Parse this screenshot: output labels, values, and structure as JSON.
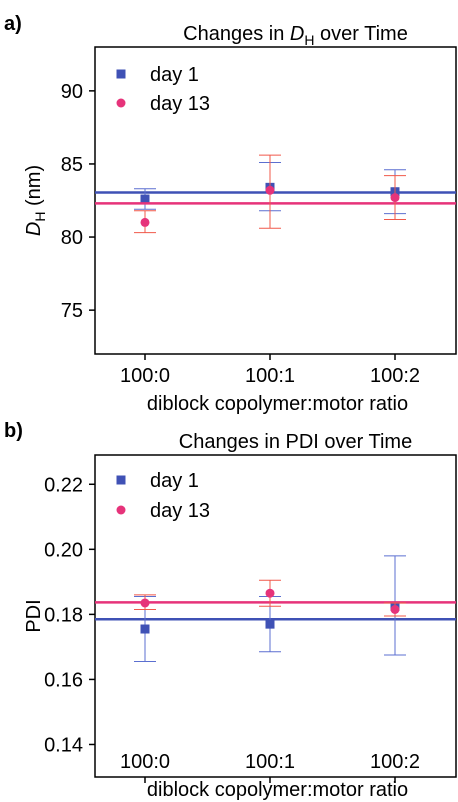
{
  "colors": {
    "day1": "#3f51b5",
    "day13": "#e6337a",
    "day1_err": "#5b6fd0",
    "day13_err": "#f0584a"
  },
  "chart_data": [
    {
      "panel_label": "a)",
      "type": "scatter",
      "title": {
        "pre": "Changes in ",
        "var": "D",
        "sub": "H",
        "post": " over Time"
      },
      "xlabel": "diblock copolymer:motor ratio",
      "ylabel": {
        "var": "D",
        "sub": "H",
        "post": " (nm)"
      },
      "categories": [
        "100:0",
        "100:1",
        "100:2"
      ],
      "ylim": [
        72,
        93
      ],
      "yticks": [
        75,
        80,
        85,
        90
      ],
      "tick_labels": [
        "75",
        "80",
        "85",
        "90"
      ],
      "legend_position": "top-left",
      "series": [
        {
          "name": "day 1",
          "marker": "square",
          "values": [
            82.6,
            83.4,
            83.1
          ],
          "err_low": [
            81.9,
            81.8,
            81.6
          ],
          "err_high": [
            83.3,
            85.1,
            84.6
          ],
          "mean": 83.05
        },
        {
          "name": "day 13",
          "marker": "circle",
          "values": [
            81.0,
            83.2,
            82.7
          ],
          "err_low": [
            80.3,
            80.6,
            81.2
          ],
          "err_high": [
            81.8,
            85.6,
            84.2
          ],
          "mean": 82.3
        }
      ]
    },
    {
      "panel_label": "b)",
      "type": "scatter",
      "title": "Changes in PDI over Time",
      "xlabel": "diblock copolymer:motor ratio",
      "ylabel": "PDI",
      "categories": [
        "100:0",
        "100:1",
        "100:2"
      ],
      "ylim": [
        0.13,
        0.229
      ],
      "yticks": [
        0.14,
        0.16,
        0.18,
        0.2,
        0.22
      ],
      "tick_labels": [
        "0.14",
        "0.16",
        "0.18",
        "0.20",
        "0.22"
      ],
      "legend_position": "top-left",
      "series": [
        {
          "name": "day 1",
          "marker": "square",
          "values": [
            0.1755,
            0.177,
            0.1825
          ],
          "err_low": [
            0.1655,
            0.1685,
            0.1675
          ],
          "err_high": [
            0.1855,
            0.1855,
            0.198
          ],
          "mean": 0.1785
        },
        {
          "name": "day 13",
          "marker": "circle",
          "values": [
            0.1835,
            0.1865,
            0.1815
          ],
          "err_low": [
            0.1815,
            0.1825,
            0.1795
          ],
          "err_high": [
            0.186,
            0.1905,
            0.1835
          ],
          "mean": 0.1837
        }
      ]
    }
  ]
}
